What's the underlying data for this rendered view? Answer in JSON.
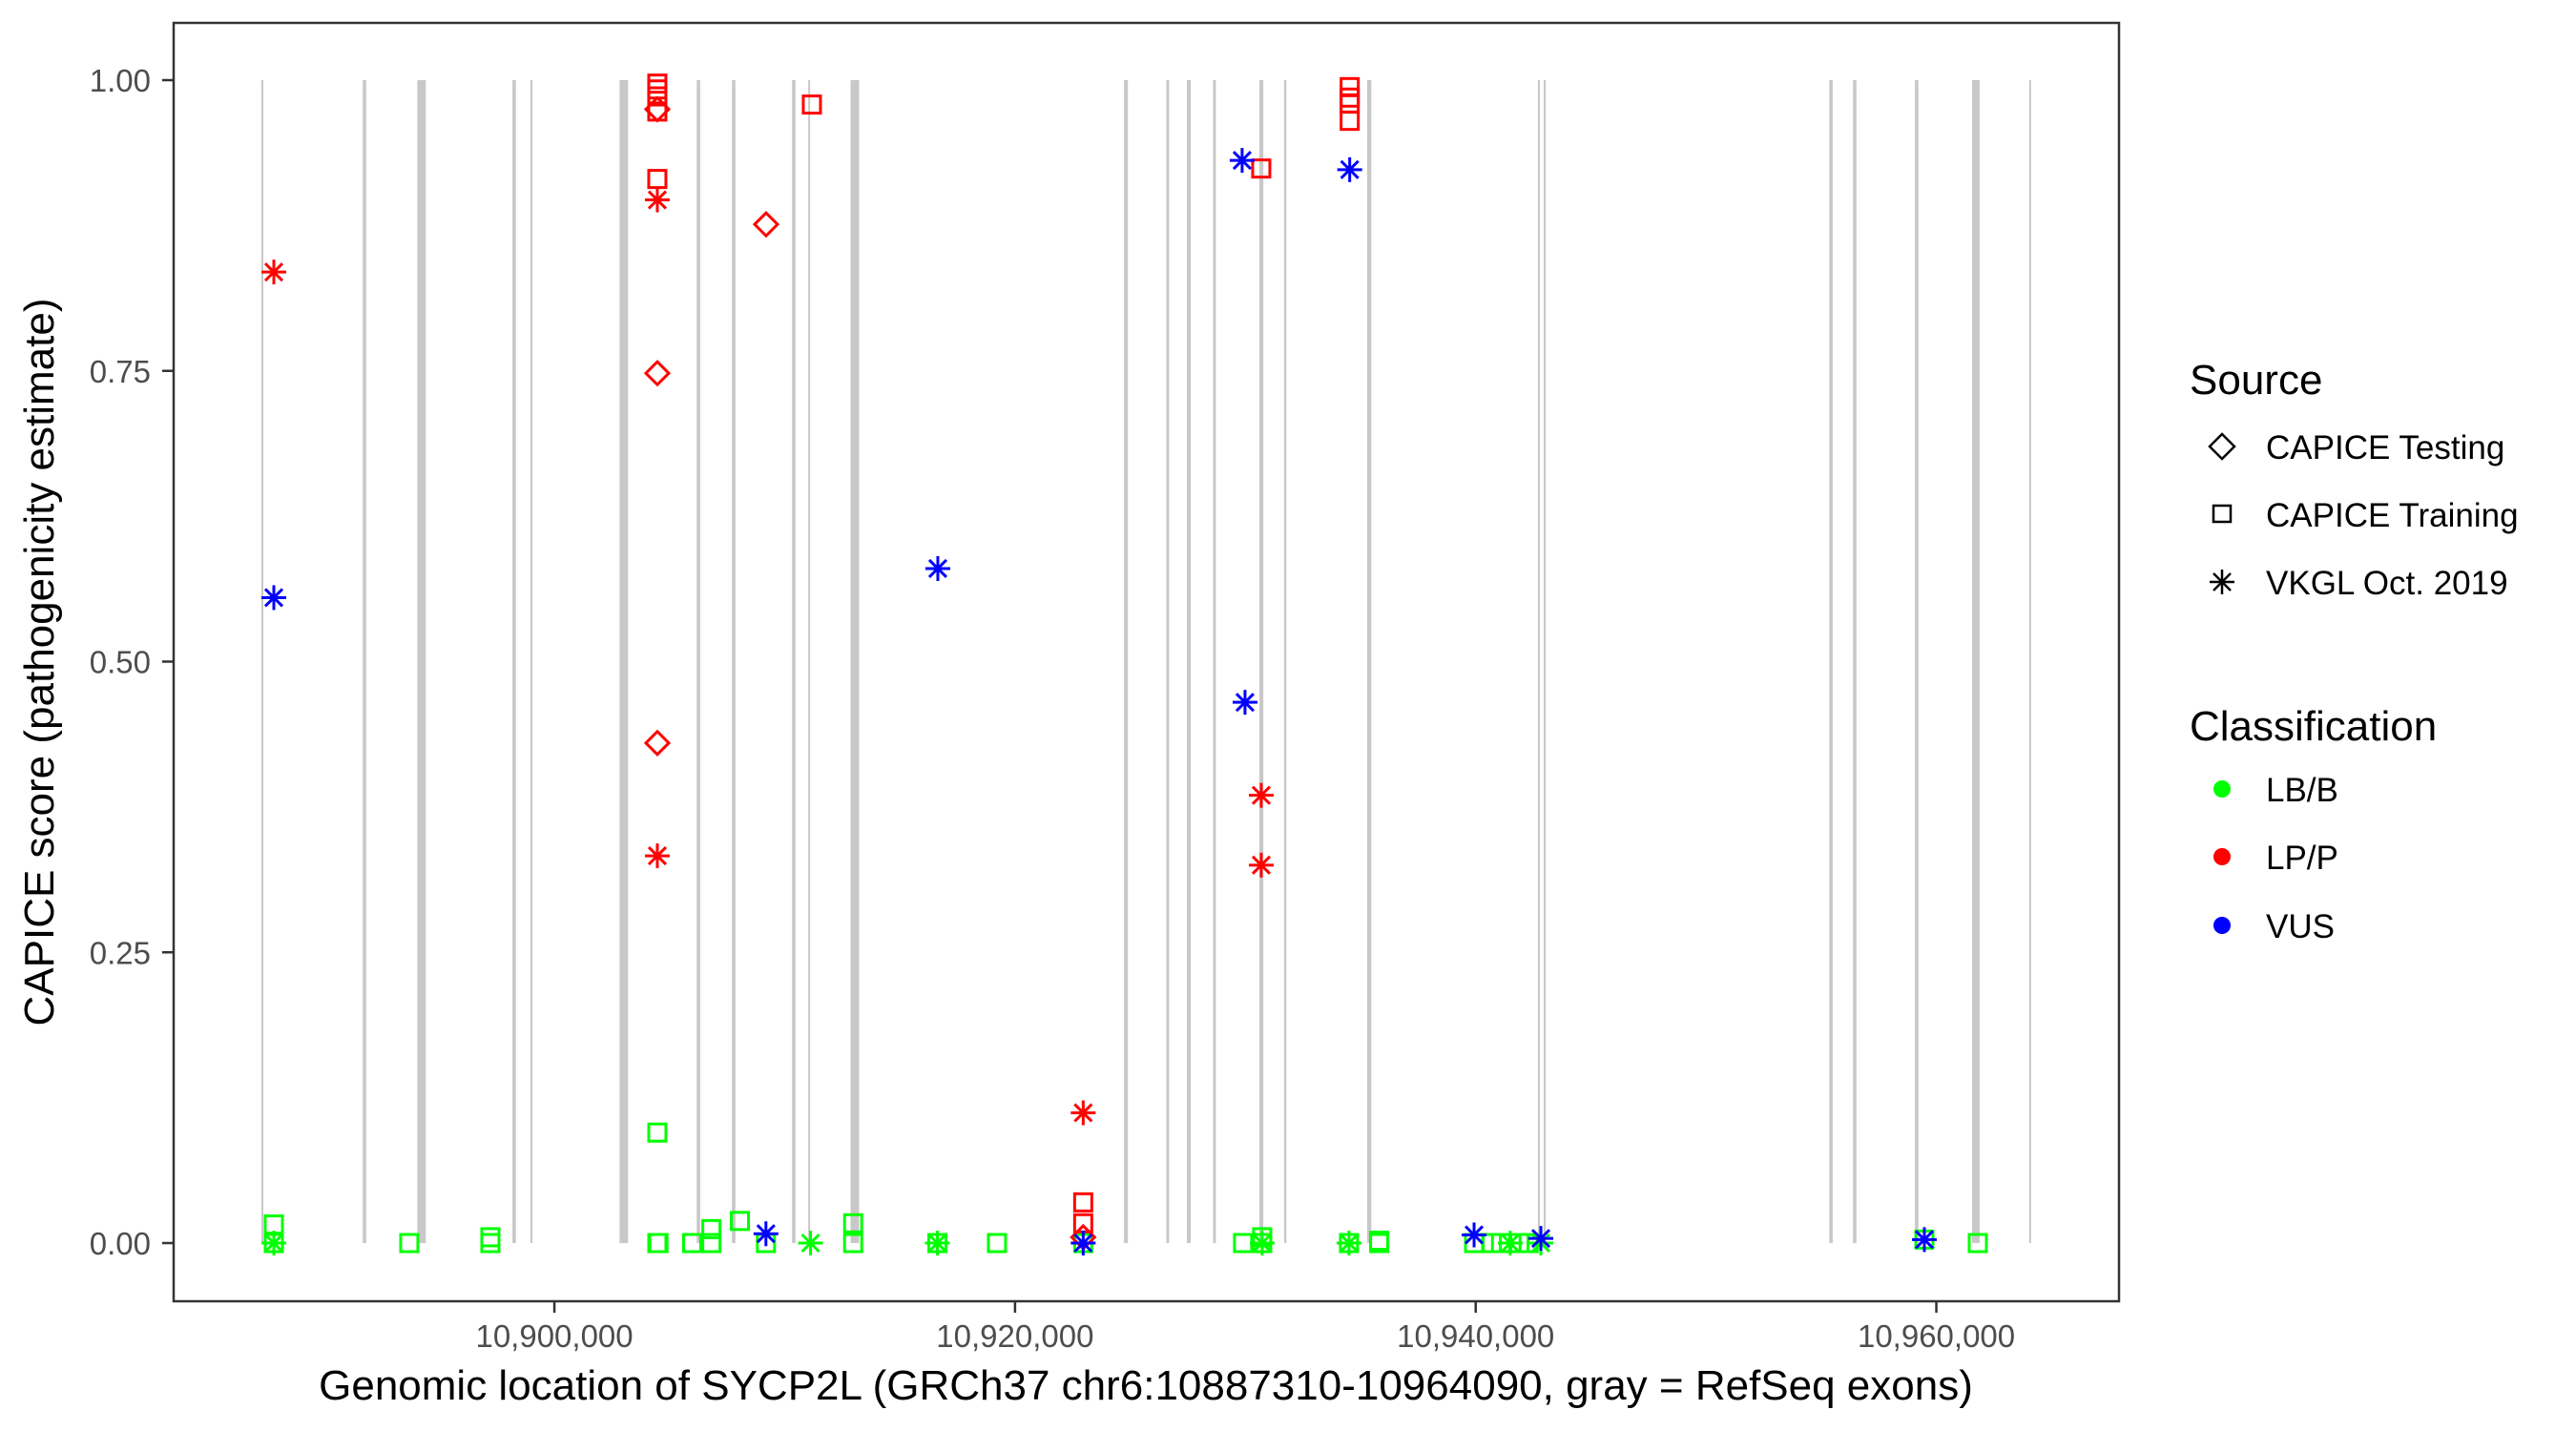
{
  "chart_data": {
    "type": "scatter",
    "title": "",
    "xlabel": "Genomic location of SYCP2L (GRCh37 chr6:10887310-10964090, gray = RefSeq exons)",
    "ylabel": "CAPICE score (pathogenicity estimate)",
    "xlim": [
      10883470,
      10967930
    ],
    "ylim": [
      -0.05,
      1.05
    ],
    "x_ticks": [
      10900000,
      10920000,
      10940000,
      10960000
    ],
    "x_tick_labels": [
      "10,900,000",
      "10,920,000",
      "10,940,000",
      "10,960,000"
    ],
    "y_ticks": [
      0,
      0.25,
      0.5,
      0.75,
      1.0
    ],
    "y_tick_labels": [
      "0.00",
      "0.25",
      "0.50",
      "0.75",
      "1.00"
    ],
    "grid": false,
    "exon_band_color": "#c8c8c8",
    "exons": [
      [
        10887280,
        80
      ],
      [
        10891680,
        150
      ],
      [
        10894050,
        370
      ],
      [
        10898180,
        150
      ],
      [
        10898960,
        90
      ],
      [
        10902830,
        370
      ],
      [
        10906180,
        150
      ],
      [
        10907710,
        150
      ],
      [
        10910320,
        150
      ],
      [
        10911020,
        80
      ],
      [
        10912860,
        370
      ],
      [
        10924730,
        170
      ],
      [
        10926570,
        120
      ],
      [
        10927460,
        170
      ],
      [
        10928600,
        120
      ],
      [
        10930610,
        170
      ],
      [
        10931680,
        100
      ],
      [
        10935290,
        180
      ],
      [
        10942700,
        90
      ],
      [
        10942950,
        90
      ],
      [
        10955350,
        150
      ],
      [
        10956380,
        150
      ],
      [
        10959070,
        150
      ],
      [
        10961550,
        330
      ],
      [
        10964030,
        80
      ]
    ],
    "legend": {
      "placement": "right",
      "source": {
        "title": "Source",
        "entries": [
          {
            "key": "T",
            "label": "CAPICE Testing",
            "shape": "diamond"
          },
          {
            "key": "R",
            "label": "CAPICE Training",
            "shape": "square"
          },
          {
            "key": "V",
            "label": "VKGL Oct. 2019",
            "shape": "asterisk"
          }
        ]
      },
      "classification": {
        "title": "Classification",
        "entries": [
          {
            "key": "B",
            "label": "LB/B",
            "color": "#00ff00"
          },
          {
            "key": "P",
            "label": "LP/P",
            "color": "#ff0000"
          },
          {
            "key": "U",
            "label": "VUS",
            "color": "#0000ff"
          }
        ]
      }
    },
    "point_fields": [
      "position",
      "score",
      "source",
      "classification"
    ],
    "points": [
      [
        10887820,
        0.016,
        "R",
        "B"
      ],
      [
        10887820,
        0,
        "R",
        "B"
      ],
      [
        10887820,
        0,
        "V",
        "B"
      ],
      [
        10893700,
        0,
        "R",
        "B"
      ],
      [
        10897222,
        0.005,
        "R",
        "B"
      ],
      [
        10897222,
        0,
        "R",
        "B"
      ],
      [
        10904470,
        0,
        "R",
        "B"
      ],
      [
        10904520,
        0,
        "R",
        "B"
      ],
      [
        10904470,
        0.095,
        "R",
        "B"
      ],
      [
        10905982,
        0,
        "R",
        "B"
      ],
      [
        10906816,
        0.012,
        "R",
        "B"
      ],
      [
        10906816,
        0,
        "R",
        "B"
      ],
      [
        10908055,
        0.019,
        "R",
        "B"
      ],
      [
        10909185,
        0,
        "R",
        "B"
      ],
      [
        10911123,
        0,
        "V",
        "B"
      ],
      [
        10912972,
        0.017,
        "R",
        "B"
      ],
      [
        10912972,
        0,
        "R",
        "B"
      ],
      [
        10916630,
        0,
        "V",
        "B"
      ],
      [
        10916630,
        0,
        "R",
        "B"
      ],
      [
        10919216,
        0,
        "R",
        "B"
      ],
      [
        10922960,
        0,
        "R",
        "B"
      ],
      [
        10929900,
        0,
        "R",
        "B"
      ],
      [
        10930730,
        0.005,
        "R",
        "B"
      ],
      [
        10930730,
        0,
        "R",
        "B"
      ],
      [
        10930730,
        0,
        "V",
        "B"
      ],
      [
        10934500,
        0,
        "V",
        "B"
      ],
      [
        10934500,
        0,
        "R",
        "B"
      ],
      [
        10935810,
        0.002,
        "R",
        "B"
      ],
      [
        10935810,
        0,
        "R",
        "B"
      ],
      [
        10939930,
        0,
        "R",
        "B"
      ],
      [
        10940700,
        0,
        "R",
        "B"
      ],
      [
        10941100,
        0,
        "R",
        "B"
      ],
      [
        10941500,
        0,
        "V",
        "B"
      ],
      [
        10941900,
        0,
        "R",
        "B"
      ],
      [
        10942300,
        0,
        "R",
        "B"
      ],
      [
        10942830,
        0,
        "V",
        "B"
      ],
      [
        10959480,
        0.003,
        "R",
        "B"
      ],
      [
        10961800,
        0,
        "R",
        "B"
      ],
      [
        10887820,
        0.835,
        "V",
        "P"
      ],
      [
        10904470,
        0.997,
        "R",
        "P"
      ],
      [
        10904470,
        0.992,
        "R",
        "P"
      ],
      [
        10904470,
        0.986,
        "R",
        "P"
      ],
      [
        10904470,
        0.975,
        "T",
        "P"
      ],
      [
        10904470,
        0.973,
        "R",
        "P"
      ],
      [
        10904470,
        0.915,
        "R",
        "P"
      ],
      [
        10904470,
        0.897,
        "V",
        "P"
      ],
      [
        10904470,
        0.748,
        "T",
        "P"
      ],
      [
        10904470,
        0.43,
        "T",
        "P"
      ],
      [
        10904470,
        0.333,
        "V",
        "P"
      ],
      [
        10909192,
        0.876,
        "T",
        "P"
      ],
      [
        10911180,
        0.979,
        "R",
        "P"
      ],
      [
        10922960,
        0.112,
        "V",
        "P"
      ],
      [
        10922960,
        0.035,
        "R",
        "P"
      ],
      [
        10922960,
        0.017,
        "R",
        "P"
      ],
      [
        10922960,
        0.005,
        "T",
        "P"
      ],
      [
        10930690,
        0.924,
        "R",
        "P"
      ],
      [
        10930690,
        0.385,
        "V",
        "P"
      ],
      [
        10930690,
        0.325,
        "V",
        "P"
      ],
      [
        10934530,
        0.994,
        "R",
        "P"
      ],
      [
        10934530,
        0.985,
        "R",
        "P"
      ],
      [
        10934530,
        0.98,
        "R",
        "P"
      ],
      [
        10934530,
        0.965,
        "R",
        "P"
      ],
      [
        10887820,
        0.555,
        "V",
        "U"
      ],
      [
        10909185,
        0.008,
        "V",
        "U"
      ],
      [
        10916648,
        0.58,
        "V",
        "U"
      ],
      [
        10922960,
        0,
        "V",
        "U"
      ],
      [
        10929860,
        0.931,
        "V",
        "U"
      ],
      [
        10929985,
        0.465,
        "V",
        "U"
      ],
      [
        10934530,
        0.923,
        "V",
        "U"
      ],
      [
        10939930,
        0.007,
        "V",
        "U"
      ],
      [
        10942830,
        0.004,
        "V",
        "U"
      ],
      [
        10959480,
        0.003,
        "V",
        "U"
      ]
    ]
  }
}
